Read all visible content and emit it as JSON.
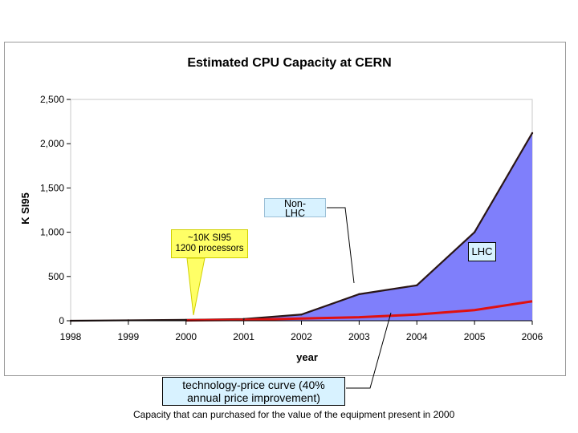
{
  "chart_data": {
    "type": "area",
    "title": "Estimated CPU Capacity at CERN",
    "xlabel": "year",
    "ylabel": "K SI95",
    "x": [
      "1998",
      "1999",
      "2000",
      "2001",
      "2002",
      "2003",
      "2004",
      "2005",
      "2006"
    ],
    "ylim": [
      0,
      2500
    ],
    "yticks": [
      0,
      500,
      1000,
      1500,
      2000,
      2500
    ],
    "ytick_labels": [
      "0",
      "500",
      "1,000",
      "1,500",
      "2,000",
      "2,500"
    ],
    "series": [
      {
        "name": "Non-LHC",
        "values": [
          0,
          5,
          10,
          15,
          60,
          55,
          70,
          120,
          200
        ],
        "color": "#d82020"
      },
      {
        "name": "LHC",
        "values": [
          0,
          0,
          0,
          5,
          10,
          245,
          330,
          880,
          1920
        ],
        "color": "#7f7ffb"
      }
    ],
    "total": [
      0,
      5,
      10,
      20,
      70,
      300,
      400,
      1000,
      2120
    ],
    "technology_price_curve": [
      0,
      2,
      5,
      10,
      25,
      40,
      70,
      120,
      220
    ],
    "curve_color": "#e01010",
    "total_line_color": "#2a1616"
  },
  "annotations": {
    "non_lhc_line1": "Non-",
    "non_lhc_line2": "LHC",
    "lhc": "LHC",
    "ten_k_line1": "~10K SI95",
    "ten_k_line2": "1200 processors",
    "tech_price_line1": "technology-price curve (40%",
    "tech_price_line2": "annual price improvement)"
  },
  "caption": "Capacity that can purchased for the value of the equipment present in 2000"
}
